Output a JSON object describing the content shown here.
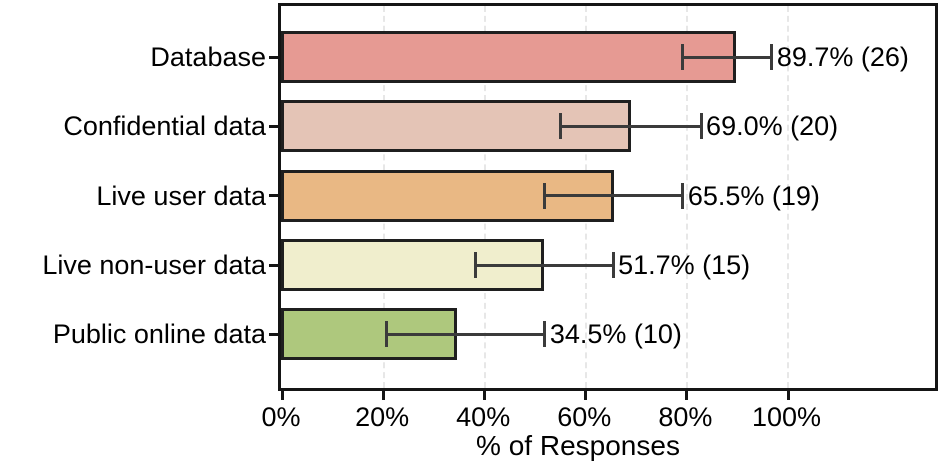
{
  "chart_data": {
    "type": "bar",
    "orientation": "horizontal",
    "title": "",
    "xlabel": "% of Responses",
    "ylabel": "",
    "categories": [
      "Database",
      "Confidential data",
      "Live user data",
      "Live non-user data",
      "Public online data"
    ],
    "values": [
      89.7,
      69.0,
      65.5,
      51.7,
      34.5
    ],
    "counts": [
      26,
      20,
      19,
      15,
      10
    ],
    "annotations": [
      "89.7% (26)",
      "69.0% (20)",
      "65.5% (19)",
      "51.7% (15)",
      "34.5% (10)"
    ],
    "error_low": [
      79.2,
      55.0,
      51.9,
      38.1,
      20.5
    ],
    "error_high": [
      96.8,
      82.8,
      79.2,
      65.4,
      51.9
    ],
    "bar_colors": [
      "#e69a93",
      "#e4c4b6",
      "#e9b884",
      "#f0eecd",
      "#aec87d"
    ],
    "bar_edge_color": "#1f1f1f",
    "error_bar_color": "#3b3b3b",
    "grid": "vertical dashed at x ticks",
    "gridline_color": "#e7e7e7",
    "legend": null,
    "x_ticks": [
      "0%",
      "20%",
      "40%",
      "60%",
      "80%",
      "100%"
    ],
    "x_tick_values": [
      0,
      20,
      40,
      60,
      80,
      100
    ],
    "xlim": [
      0,
      129.4
    ]
  }
}
